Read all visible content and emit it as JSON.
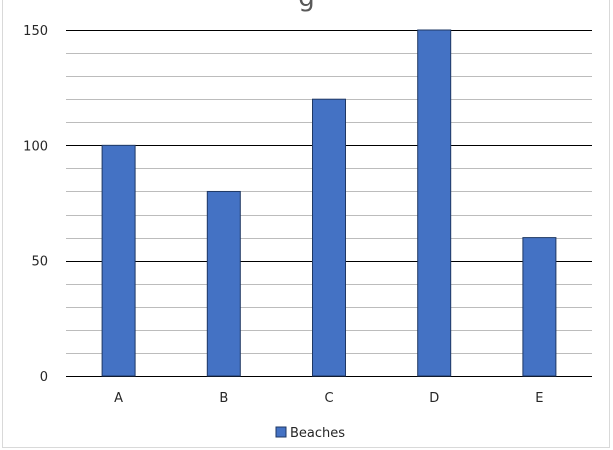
{
  "chart_data": {
    "type": "bar",
    "title": "g",
    "categories": [
      "A",
      "B",
      "C",
      "D",
      "E"
    ],
    "series": [
      {
        "name": "Beaches",
        "values": [
          100,
          80,
          120,
          150,
          60
        ]
      }
    ],
    "xlabel": "",
    "ylabel": "",
    "ylim": [
      0,
      150
    ],
    "yticks": [
      0,
      50,
      100,
      150
    ],
    "grid": true,
    "legend": "bottom",
    "colors": {
      "bar": "#4472c4",
      "bar_border": "#1f3864",
      "major_grid": "#000000",
      "minor_grid": "#a6a6a6"
    }
  }
}
